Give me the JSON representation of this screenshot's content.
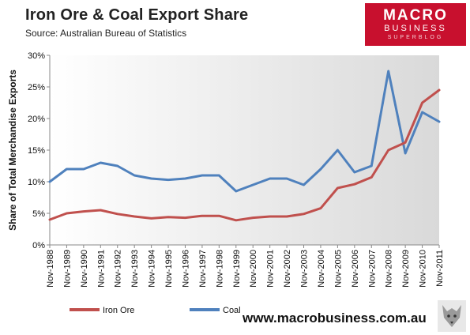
{
  "header": {
    "title": "Iron Ore & Coal Export Share",
    "source": "Source:  Australian Bureau of Statistics"
  },
  "logo": {
    "line1": "MACRO",
    "line2": "BUSINESS",
    "line3": "SUPERBLOG"
  },
  "website": "www.macrobusiness.com.au",
  "colors": {
    "iron_ore": "#c0504d",
    "coal": "#4f81bd",
    "brand": "#c8102e"
  },
  "chart_data": {
    "type": "line",
    "title": "Iron Ore & Coal Export Share",
    "ylabel": "Share of Total Merchandise Exports",
    "xlabel": "",
    "ylim": [
      0,
      30
    ],
    "yticks": [
      "0%",
      "5%",
      "10%",
      "15%",
      "20%",
      "25%",
      "30%"
    ],
    "x": [
      "Nov-1988",
      "Nov-1989",
      "Nov-1990",
      "Nov-1991",
      "Nov-1992",
      "Nov-1993",
      "Nov-1994",
      "Nov-1995",
      "Nov-1996",
      "Nov-1997",
      "Nov-1998",
      "Nov-1999",
      "Nov-2000",
      "Nov-2001",
      "Nov-2002",
      "Nov-2003",
      "Nov-2004",
      "Nov-2005",
      "Nov-2006",
      "Nov-2007",
      "Nov-2008",
      "Nov-2009",
      "Nov-2010",
      "Nov-2011"
    ],
    "series": [
      {
        "name": "Iron Ore",
        "values": [
          4.0,
          5.0,
          5.3,
          5.5,
          4.9,
          4.5,
          4.2,
          4.4,
          4.3,
          4.6,
          4.6,
          3.9,
          4.3,
          4.5,
          4.5,
          4.9,
          5.8,
          9.0,
          9.6,
          10.7,
          15.0,
          16.2,
          22.5,
          24.5
        ]
      },
      {
        "name": "Coal",
        "values": [
          10.0,
          12.0,
          12.0,
          13.0,
          12.5,
          11.0,
          10.5,
          10.3,
          10.5,
          11.0,
          11.0,
          8.5,
          9.5,
          10.5,
          10.5,
          9.5,
          12.0,
          15.0,
          11.5,
          12.5,
          27.5,
          14.5,
          21.0,
          19.5
        ]
      }
    ],
    "legend": "bottom",
    "grid": false
  }
}
